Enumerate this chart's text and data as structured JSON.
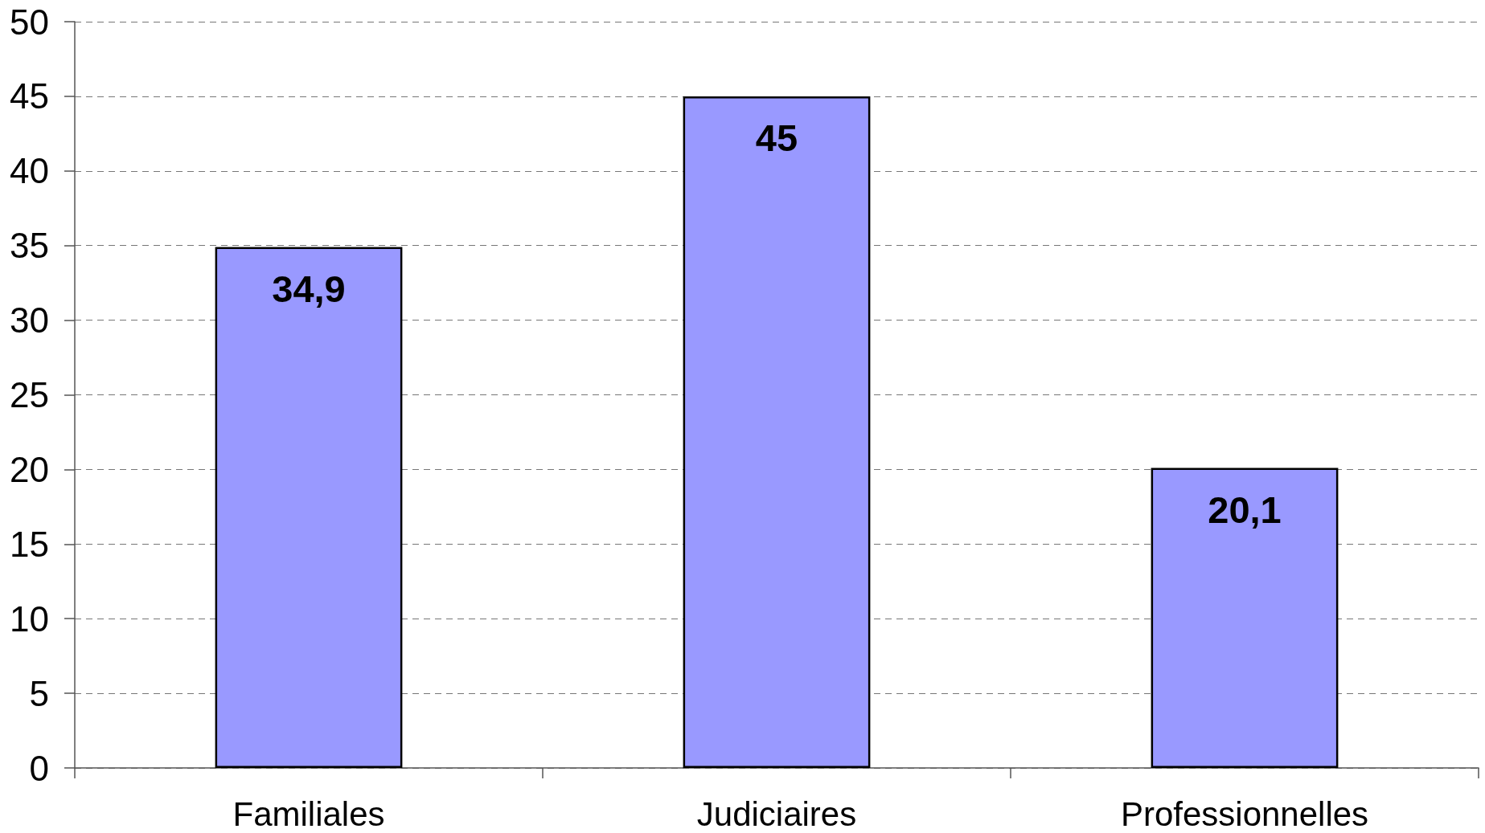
{
  "chart_data": {
    "type": "bar",
    "categories": [
      "Familiales",
      "Judiciaires",
      "Professionnelles"
    ],
    "values": [
      34.9,
      45,
      20.1
    ],
    "color": "#9999ff",
    "value_labels": [
      "34,9",
      "45",
      "20,1"
    ],
    "ylim": [
      0,
      50
    ],
    "yticks": [
      0,
      5,
      10,
      15,
      20,
      25,
      30,
      35,
      40,
      45,
      50
    ],
    "grid": "y"
  }
}
